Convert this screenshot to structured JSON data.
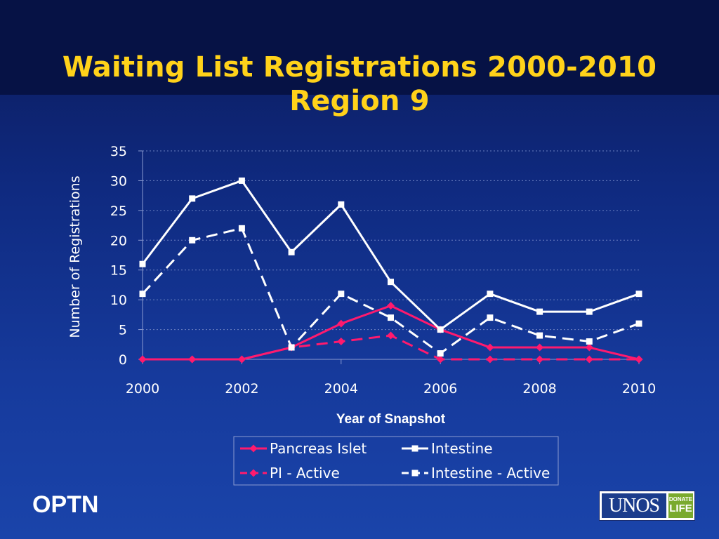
{
  "slide": {
    "title_line1": "Waiting List Registrations 2000-2010",
    "title_line2": "Region 9",
    "footer_left": "OPTN",
    "logo_text": "UNOS",
    "logo_badge_top": "DONATE",
    "logo_badge_bottom": "LIFE"
  },
  "colors": {
    "title": "#ffd21a",
    "pancreas": "#ff1a6e",
    "intestine": "#ffffff",
    "text": "#ffffff"
  },
  "chart_data": {
    "type": "line",
    "title": "",
    "xlabel": "Year of Snapshot",
    "ylabel": "Number of Registrations",
    "x": [
      2000,
      2001,
      2002,
      2003,
      2004,
      2005,
      2006,
      2007,
      2008,
      2009,
      2010
    ],
    "xticks": [
      "2000",
      "2002",
      "2004",
      "2006",
      "2008",
      "2010"
    ],
    "xlim": [
      2000,
      2010
    ],
    "yticks": [
      "0",
      "5",
      "10",
      "15",
      "20",
      "25",
      "30",
      "35"
    ],
    "ylim": [
      0,
      35
    ],
    "grid": "horizontal dashed",
    "legend_position": "bottom",
    "series": [
      {
        "name": "Pancreas Islet",
        "values": [
          0,
          0,
          0,
          2,
          6,
          9,
          5,
          2,
          2,
          2,
          0
        ],
        "color": "#ff1a6e",
        "dashed": false,
        "marker": "diamond"
      },
      {
        "name": "Intestine",
        "values": [
          16,
          27,
          30,
          18,
          26,
          13,
          5,
          11,
          8,
          8,
          11
        ],
        "color": "#ffffff",
        "dashed": false,
        "marker": "square"
      },
      {
        "name": "PI - Active",
        "values": [
          0,
          0,
          0,
          2,
          3,
          4,
          0,
          0,
          0,
          0,
          0
        ],
        "color": "#ff1a6e",
        "dashed": true,
        "marker": "diamond"
      },
      {
        "name": "Intestine - Active",
        "values": [
          11,
          20,
          22,
          2,
          11,
          7,
          1,
          7,
          4,
          3,
          6
        ],
        "color": "#ffffff",
        "dashed": true,
        "marker": "square"
      }
    ]
  }
}
